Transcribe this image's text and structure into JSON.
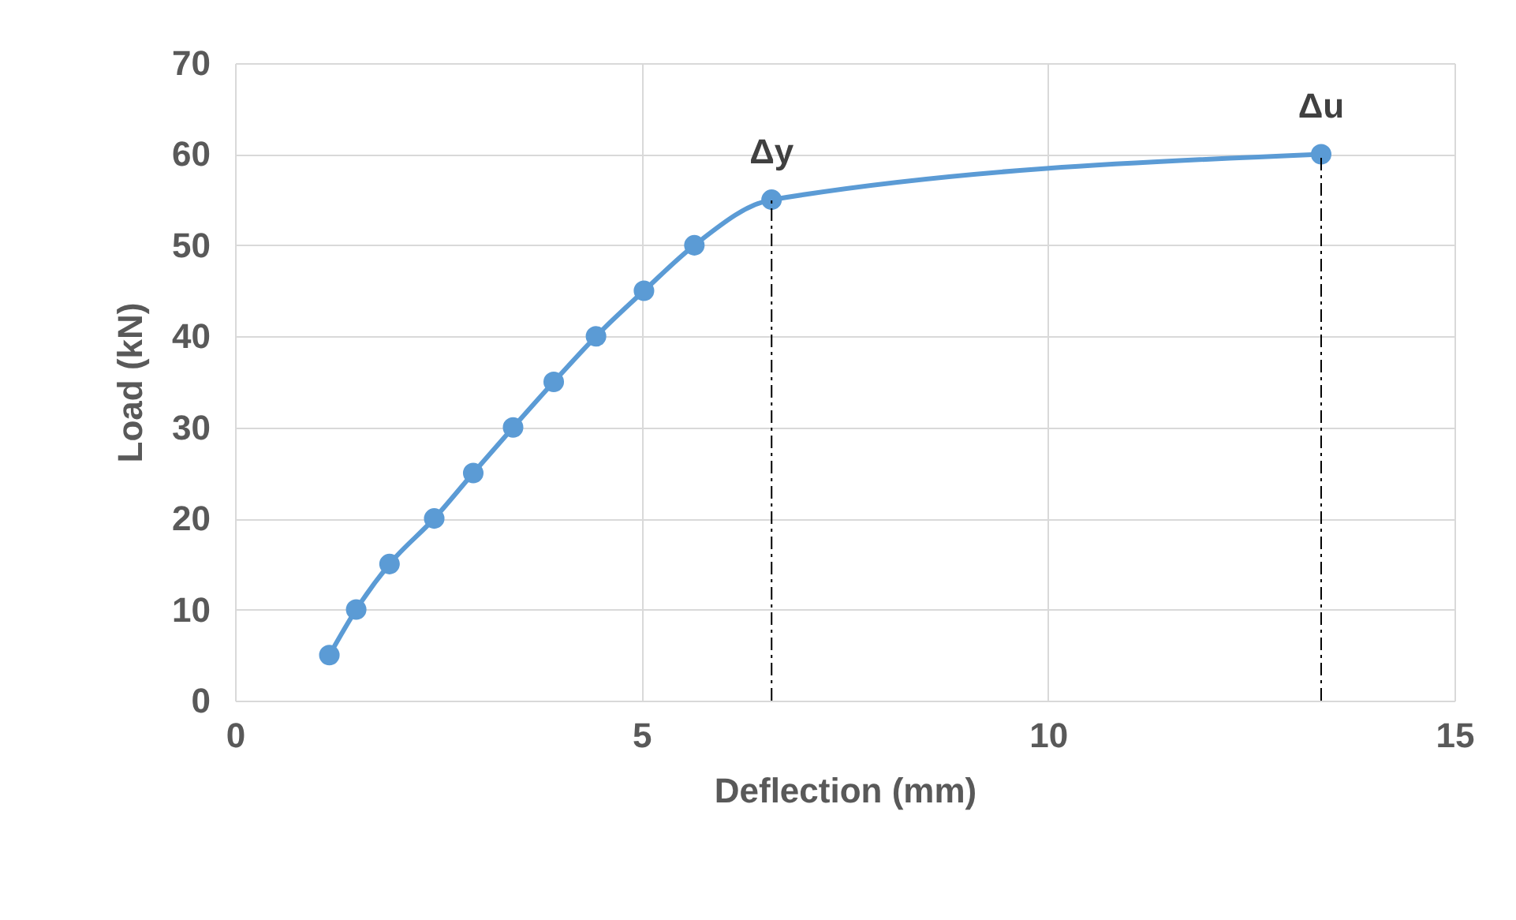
{
  "chart_data": {
    "type": "line",
    "xlabel": "Deflection (mm)",
    "ylabel": "Load (kN)",
    "x": [
      1.16,
      1.49,
      1.9,
      2.45,
      2.93,
      3.42,
      3.92,
      4.44,
      5.03,
      5.65,
      6.6,
      13.36
    ],
    "series": [
      {
        "color": "#5b9bd5",
        "values": [
          5,
          10,
          15,
          20,
          25,
          30,
          35,
          40,
          45,
          50,
          55,
          60
        ]
      }
    ],
    "xlim": [
      0,
      15
    ],
    "xticks": [
      0,
      5,
      10,
      15
    ],
    "ylim": [
      0,
      70
    ],
    "yticks": [
      0,
      10,
      20,
      30,
      40,
      50,
      60,
      70
    ],
    "grid": true,
    "marker": "circle",
    "line_style": "solid",
    "ref_lines": [
      {
        "axis": "x",
        "value": 6.6,
        "line_style": "dashdot",
        "color": "#000000"
      },
      {
        "axis": "x",
        "value": 13.36,
        "line_style": "dashdot",
        "color": "#000000"
      }
    ],
    "annotations": [
      {
        "text": "Δy",
        "x": 6.6,
        "y": 55
      },
      {
        "text": "Δu",
        "x": 13.36,
        "y": 60
      }
    ]
  }
}
